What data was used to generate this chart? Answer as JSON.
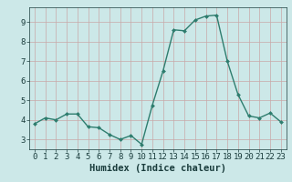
{
  "x": [
    0,
    1,
    2,
    3,
    4,
    5,
    6,
    7,
    8,
    9,
    10,
    11,
    12,
    13,
    14,
    15,
    16,
    17,
    18,
    19,
    20,
    21,
    22,
    23
  ],
  "y": [
    3.8,
    4.1,
    4.0,
    4.3,
    4.3,
    3.65,
    3.6,
    3.25,
    3.0,
    3.2,
    2.75,
    4.75,
    6.5,
    8.6,
    8.55,
    9.1,
    9.3,
    9.35,
    7.0,
    5.3,
    4.2,
    4.1,
    4.35,
    3.9
  ],
  "xlabel": "Humidex (Indice chaleur)",
  "xlim": [
    -0.5,
    23.5
  ],
  "ylim": [
    2.5,
    9.75
  ],
  "yticks": [
    3,
    4,
    5,
    6,
    7,
    8,
    9
  ],
  "xticks": [
    0,
    1,
    2,
    3,
    4,
    5,
    6,
    7,
    8,
    9,
    10,
    11,
    12,
    13,
    14,
    15,
    16,
    17,
    18,
    19,
    20,
    21,
    22,
    23
  ],
  "line_color": "#2e7d6e",
  "marker": "D",
  "marker_size": 2.0,
  "line_width": 1.0,
  "bg_color": "#cce8e8",
  "grid_color": "#b8d4d4",
  "tick_label_color": "#1a3c3c",
  "xlabel_fontsize": 7.5,
  "tick_fontsize": 6.5
}
